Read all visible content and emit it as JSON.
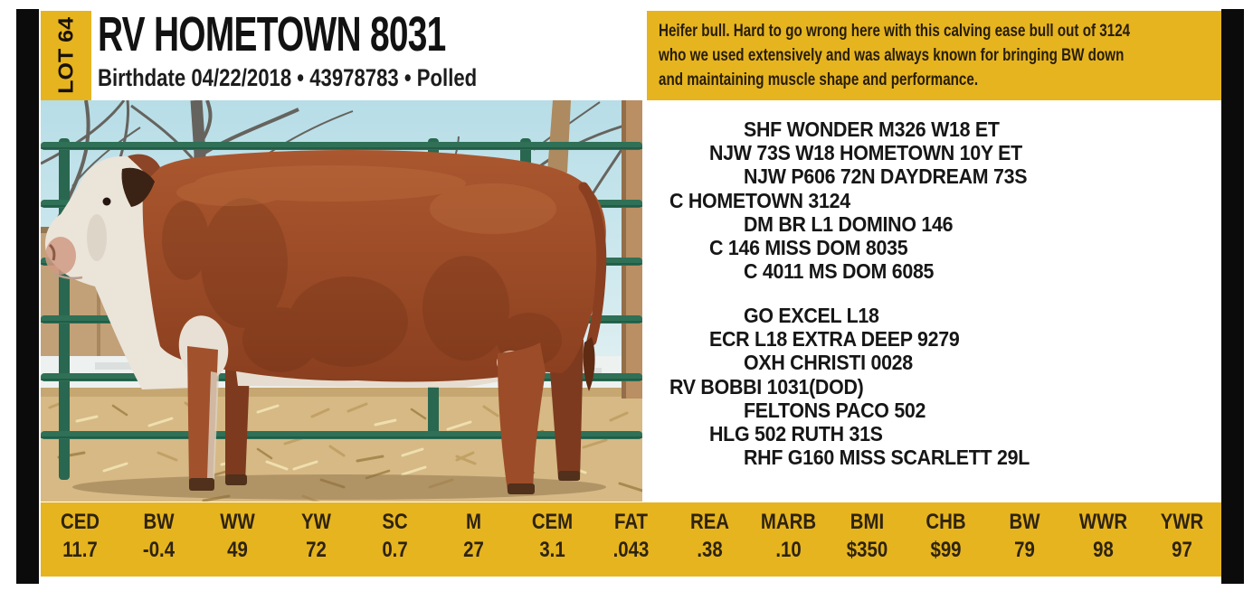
{
  "colors": {
    "accent_yellow": "#e6b41f",
    "frame_black": "#0b0b0b",
    "text_dark": "#271d0a"
  },
  "lot": {
    "label": "LOT 64"
  },
  "header": {
    "title": "RV HOMETOWN 8031",
    "subtitle": "Birthdate 04/22/2018  •  43978783  •   Polled",
    "birthdate": "04/22/2018",
    "registration": "43978783",
    "horn_status": "Polled"
  },
  "description": {
    "lines": [
      "Heifer bull. Hard to go wrong here with this calving ease bull out of 3124",
      "who we used extensively and was always known for bringing BW down",
      "and maintaining muscle shape and performance."
    ]
  },
  "photo": {
    "caption": "hereford-bull-photo"
  },
  "pedigree": {
    "sire_block": [
      {
        "name": "SHF WONDER M326 W18 ET",
        "level": 2
      },
      {
        "name": "NJW 73S W18 HOMETOWN 10Y ET",
        "level": 1
      },
      {
        "name": "NJW P606 72N DAYDREAM 73S",
        "level": 2
      },
      {
        "name": "C HOMETOWN 3124",
        "level": 0
      },
      {
        "name": "DM BR L1 DOMINO 146",
        "level": 2
      },
      {
        "name": "C 146 MISS DOM 8035",
        "level": 1
      },
      {
        "name": "C 4011 MS DOM 6085",
        "level": 2
      }
    ],
    "dam_block": [
      {
        "name": "GO EXCEL L18",
        "level": 2
      },
      {
        "name": "ECR L18 EXTRA DEEP 9279",
        "level": 1
      },
      {
        "name": "OXH CHRISTI 0028",
        "level": 2
      },
      {
        "name": "RV BOBBI 1031(DOD)",
        "level": 0
      },
      {
        "name": "FELTONS PACO 502",
        "level": 2
      },
      {
        "name": "HLG 502 RUTH 31S",
        "level": 1
      },
      {
        "name": "RHF G160 MISS SCARLETT 29L",
        "level": 2
      }
    ]
  },
  "epd": {
    "columns": [
      {
        "label": "CED",
        "value": "11.7"
      },
      {
        "label": "BW",
        "value": "-0.4"
      },
      {
        "label": "WW",
        "value": "49"
      },
      {
        "label": "YW",
        "value": "72"
      },
      {
        "label": "SC",
        "value": "0.7"
      },
      {
        "label": "M",
        "value": "27"
      },
      {
        "label": "CEM",
        "value": "3.1"
      },
      {
        "label": "FAT",
        "value": ".043"
      },
      {
        "label": "REA",
        "value": ".38"
      },
      {
        "label": "MARB",
        "value": ".10"
      },
      {
        "label": "BMI",
        "value": "$350"
      },
      {
        "label": "CHB",
        "value": "$99"
      },
      {
        "label": "BW",
        "value": "79"
      },
      {
        "label": "WWR",
        "value": "98"
      },
      {
        "label": "YWR",
        "value": "97"
      }
    ]
  }
}
